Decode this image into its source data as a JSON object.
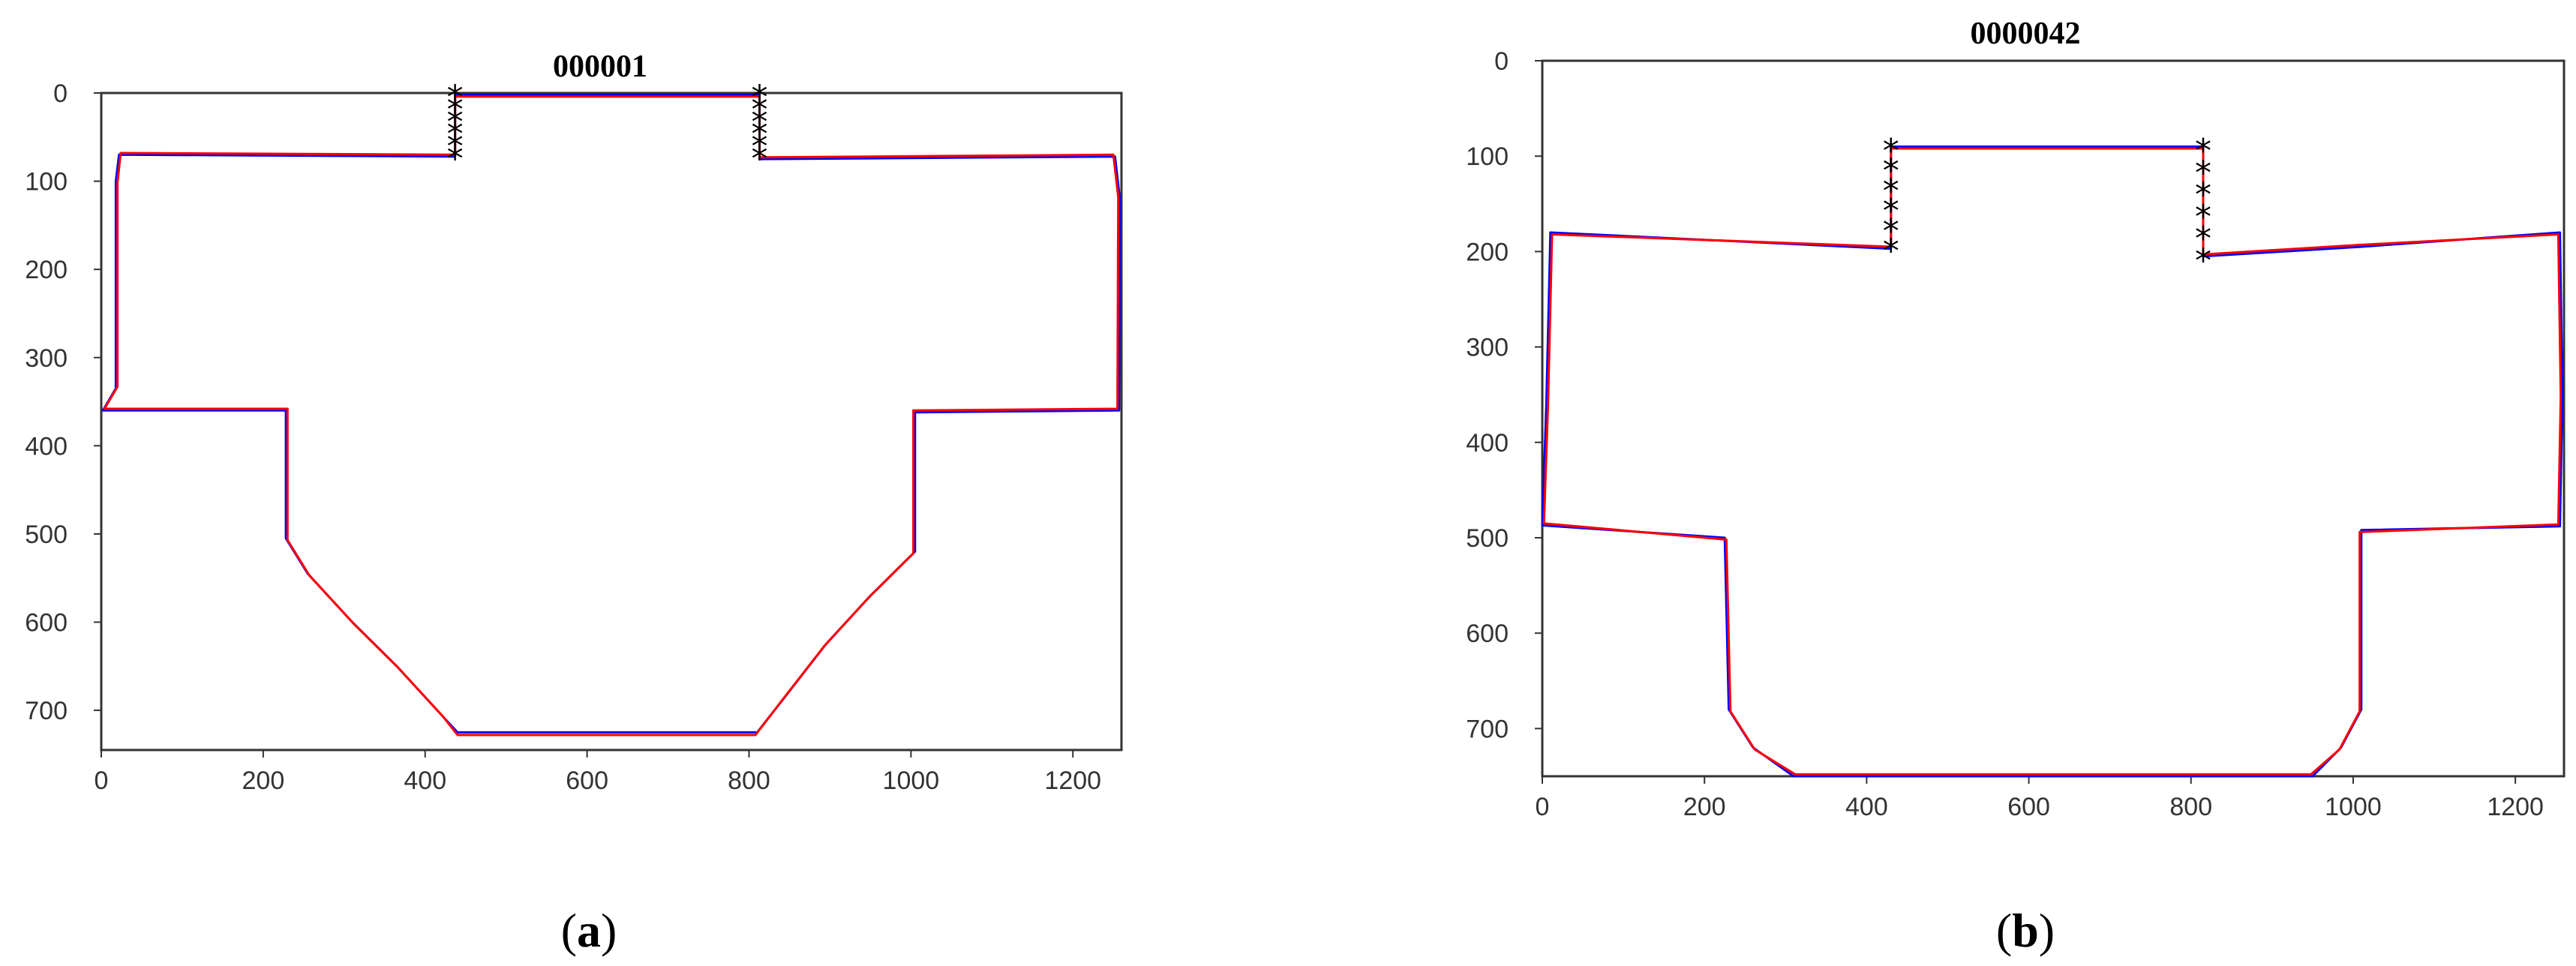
{
  "panels": [
    {
      "label_open": "(",
      "label_letter": "a",
      "label_close": ")"
    },
    {
      "label_open": "(",
      "label_letter": "b",
      "label_close": ")"
    }
  ],
  "chart_data": [
    {
      "type": "line",
      "title": "000001",
      "xlim": [
        0,
        1260
      ],
      "ylim": [
        745,
        0
      ],
      "y_axis_inverted": true,
      "xticks": [
        0,
        200,
        400,
        600,
        800,
        1000,
        1200
      ],
      "yticks": [
        0,
        100,
        200,
        300,
        400,
        500,
        600,
        700
      ],
      "grid": false,
      "series": [
        {
          "color": "#0000ff",
          "points": [
            [
              437,
              72
            ],
            [
              437,
              2
            ],
            [
              813,
              2
            ],
            [
              813,
              75
            ],
            [
              1252,
              72
            ],
            [
              1258,
              120
            ],
            [
              1257,
              360
            ],
            [
              1005,
              362
            ],
            [
              1005,
              520
            ],
            [
              950,
              570
            ],
            [
              895,
              625
            ],
            [
              840,
              690
            ],
            [
              810,
              725
            ],
            [
              440,
              725
            ],
            [
              420,
              705
            ],
            [
              365,
              650
            ],
            [
              310,
              600
            ],
            [
              255,
              545
            ],
            [
              228,
              505
            ],
            [
              228,
              360
            ],
            [
              2,
              360
            ],
            [
              18,
              335
            ],
            [
              18,
              100
            ],
            [
              22,
              70
            ],
            [
              437,
              72
            ]
          ]
        },
        {
          "color": "#ff0000",
          "points": [
            [
              437,
              70
            ],
            [
              437,
              4
            ],
            [
              813,
              4
            ],
            [
              813,
              73
            ],
            [
              1250,
              70
            ],
            [
              1256,
              118
            ],
            [
              1255,
              358
            ],
            [
              1003,
              360
            ],
            [
              1003,
              522
            ],
            [
              948,
              572
            ],
            [
              893,
              627
            ],
            [
              838,
              692
            ],
            [
              808,
              728
            ],
            [
              440,
              728
            ],
            [
              422,
              707
            ],
            [
              367,
              652
            ],
            [
              312,
              602
            ],
            [
              257,
              547
            ],
            [
              230,
              507
            ],
            [
              230,
              358
            ],
            [
              4,
              358
            ],
            [
              20,
              333
            ],
            [
              20,
              102
            ],
            [
              24,
              68
            ],
            [
              437,
              70
            ]
          ]
        },
        {
          "color": "#000000",
          "marker": "*",
          "points": [
            [
              437,
              2
            ],
            [
              437,
              16
            ],
            [
              437,
              30
            ],
            [
              437,
              44
            ],
            [
              437,
              58
            ],
            [
              437,
              72
            ],
            [
              813,
              2
            ],
            [
              813,
              16
            ],
            [
              813,
              30
            ],
            [
              813,
              44
            ],
            [
              813,
              58
            ],
            [
              813,
              72
            ]
          ]
        }
      ]
    },
    {
      "type": "line",
      "title": "0000042",
      "xlim": [
        0,
        1260
      ],
      "ylim": [
        750,
        0
      ],
      "y_axis_inverted": true,
      "xticks": [
        0,
        200,
        400,
        600,
        800,
        1000,
        1200
      ],
      "yticks": [
        0,
        100,
        200,
        300,
        400,
        500,
        600,
        700
      ],
      "grid": false,
      "series": [
        {
          "color": "#0000ff",
          "points": [
            [
              430,
              197
            ],
            [
              430,
              90
            ],
            [
              815,
              90
            ],
            [
              815,
              205
            ],
            [
              1010,
              195
            ],
            [
              1255,
              180
            ],
            [
              1258,
              350
            ],
            [
              1255,
              488
            ],
            [
              1010,
              492
            ],
            [
              1010,
              680
            ],
            [
              985,
              720
            ],
            [
              950,
              750
            ],
            [
              310,
              750
            ],
            [
              260,
              720
            ],
            [
              230,
              680
            ],
            [
              225,
              500
            ],
            [
              0,
              487
            ],
            [
              5,
              360
            ],
            [
              10,
              180
            ],
            [
              430,
              197
            ]
          ]
        },
        {
          "color": "#ff0000",
          "points": [
            [
              430,
              195
            ],
            [
              430,
              92
            ],
            [
              815,
              92
            ],
            [
              815,
              203
            ],
            [
              1008,
              193
            ],
            [
              1253,
              182
            ],
            [
              1256,
              352
            ],
            [
              1253,
              486
            ],
            [
              1008,
              494
            ],
            [
              1008,
              682
            ],
            [
              983,
              722
            ],
            [
              948,
              748
            ],
            [
              312,
              748
            ],
            [
              262,
              722
            ],
            [
              232,
              682
            ],
            [
              227,
              502
            ],
            [
              2,
              485
            ],
            [
              7,
              362
            ],
            [
              12,
              182
            ],
            [
              430,
              195
            ]
          ]
        },
        {
          "color": "#000000",
          "marker": "*",
          "points": [
            [
              430,
              92
            ],
            [
              430,
              113
            ],
            [
              430,
              134
            ],
            [
              430,
              155
            ],
            [
              430,
              176
            ],
            [
              430,
              197
            ],
            [
              815,
              92
            ],
            [
              815,
              115
            ],
            [
              815,
              138
            ],
            [
              815,
              161
            ],
            [
              815,
              184
            ],
            [
              815,
              207
            ]
          ]
        }
      ]
    }
  ]
}
